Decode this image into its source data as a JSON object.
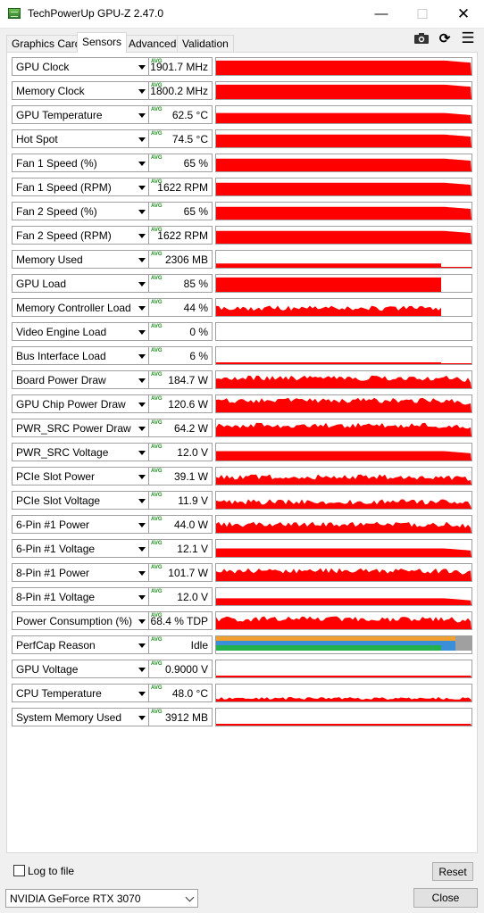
{
  "window": {
    "title": "TechPowerUp GPU-Z 2.47.0",
    "minimize_glyph": "—",
    "maximize_glyph": "☐",
    "close_glyph": "✕"
  },
  "tabs": [
    {
      "label": "Graphics Card",
      "active": false
    },
    {
      "label": "Sensors",
      "active": true
    },
    {
      "label": "Advanced",
      "active": false
    },
    {
      "label": "Validation",
      "active": false
    }
  ],
  "toolbar": {
    "camera_icon": "camera-icon",
    "refresh_glyph": "⟳",
    "menu_glyph": "☰"
  },
  "colors": {
    "graph_red": "#ff0000",
    "perfcap_orange": "#f0a030",
    "perfcap_blue": "#3a8fd8",
    "perfcap_green": "#22b14c",
    "perfcap_gray": "#a0a0a0",
    "avg_green": "#1c8d1c"
  },
  "sensors": [
    {
      "name": "GPU Clock",
      "avg_label": "AVG",
      "value": "1901.7 MHz",
      "graph": "solid",
      "level": 0.85
    },
    {
      "name": "Memory Clock",
      "avg_label": "AVG",
      "value": "1800.2 MHz",
      "graph": "solid",
      "level": 0.85
    },
    {
      "name": "GPU Temperature",
      "avg_label": "AVG",
      "value": "62.5 °C",
      "graph": "solid",
      "level": 0.6
    },
    {
      "name": "Hot Spot",
      "avg_label": "AVG",
      "value": "74.5 °C",
      "graph": "solid",
      "level": 0.75
    },
    {
      "name": "Fan 1 Speed (%)",
      "avg_label": "AVG",
      "value": "65 %",
      "graph": "solid",
      "level": 0.75
    },
    {
      "name": "Fan 1 Speed (RPM)",
      "avg_label": "AVG",
      "value": "1622 RPM",
      "graph": "solid",
      "level": 0.75
    },
    {
      "name": "Fan 2 Speed (%)",
      "avg_label": "AVG",
      "value": "65 %",
      "graph": "solid",
      "level": 0.75
    },
    {
      "name": "Fan 2 Speed (RPM)",
      "avg_label": "AVG",
      "value": "1622 RPM",
      "graph": "solid",
      "level": 0.75
    },
    {
      "name": "Memory Used",
      "avg_label": "AVG",
      "value": "2306 MB",
      "graph": "partial",
      "level": 0.25
    },
    {
      "name": "GPU Load",
      "avg_label": "AVG",
      "value": "85 %",
      "graph": "partial",
      "level": 0.85
    },
    {
      "name": "Memory Controller Load",
      "avg_label": "AVG",
      "value": "44 %",
      "graph": "noisy-partial",
      "level": 0.45
    },
    {
      "name": "Video Engine Load",
      "avg_label": "AVG",
      "value": "0 %",
      "graph": "empty",
      "level": 0
    },
    {
      "name": "Bus Interface Load",
      "avg_label": "AVG",
      "value": "6 %",
      "graph": "thin-partial",
      "level": 0.06
    },
    {
      "name": "Board Power Draw",
      "avg_label": "AVG",
      "value": "184.7 W",
      "graph": "noisy",
      "level": 0.6
    },
    {
      "name": "GPU Chip Power Draw",
      "avg_label": "AVG",
      "value": "120.6 W",
      "graph": "noisy",
      "level": 0.7
    },
    {
      "name": "PWR_SRC Power Draw",
      "avg_label": "AVG",
      "value": "64.2 W",
      "graph": "noisy",
      "level": 0.65
    },
    {
      "name": "PWR_SRC Voltage",
      "avg_label": "AVG",
      "value": "12.0 V",
      "graph": "solid",
      "level": 0.55
    },
    {
      "name": "PCIe Slot Power",
      "avg_label": "AVG",
      "value": "39.1 W",
      "graph": "noisy",
      "level": 0.45
    },
    {
      "name": "PCIe Slot Voltage",
      "avg_label": "AVG",
      "value": "11.9 V",
      "graph": "noisy",
      "level": 0.4
    },
    {
      "name": "6-Pin #1 Power",
      "avg_label": "AVG",
      "value": "44.0 W",
      "graph": "noisy",
      "level": 0.5
    },
    {
      "name": "6-Pin #1 Voltage",
      "avg_label": "AVG",
      "value": "12.1 V",
      "graph": "solid",
      "level": 0.5
    },
    {
      "name": "8-Pin #1 Power",
      "avg_label": "AVG",
      "value": "101.7 W",
      "graph": "noisy",
      "level": 0.6
    },
    {
      "name": "8-Pin #1 Voltage",
      "avg_label": "AVG",
      "value": "12.0 V",
      "graph": "solid",
      "level": 0.4
    },
    {
      "name": "Power Consumption (%)",
      "avg_label": "AVG",
      "value": "68.4 % TDP",
      "graph": "noisy",
      "level": 0.6
    },
    {
      "name": "PerfCap Reason",
      "avg_label": "AVG",
      "value": "Idle",
      "graph": "perfcap",
      "level": 1
    },
    {
      "name": "GPU Voltage",
      "avg_label": "AVG",
      "value": "0.9000 V",
      "graph": "thin",
      "level": 0.3
    },
    {
      "name": "CPU Temperature",
      "avg_label": "AVG",
      "value": "48.0 °C",
      "graph": "thin-noisy",
      "level": 0.3
    },
    {
      "name": "System Memory Used",
      "avg_label": "AVG",
      "value": "3912 MB",
      "graph": "thin",
      "level": 0.3
    }
  ],
  "footer": {
    "log_label": "Log to file",
    "log_checked": false,
    "reset_label": "Reset",
    "gpu_selected": "NVIDIA GeForce RTX 3070",
    "close_label": "Close"
  }
}
